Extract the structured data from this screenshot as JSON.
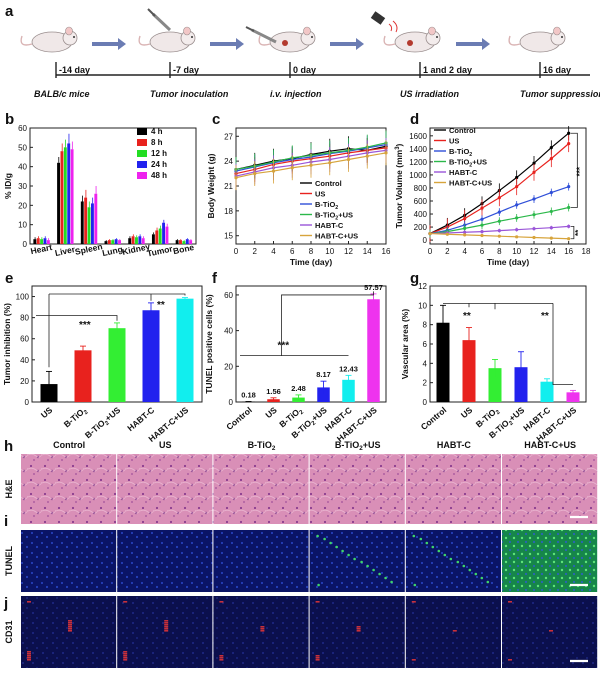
{
  "timeline": {
    "label": "a",
    "days": [
      "-14 day",
      "-7 day",
      "0 day",
      "1 and 2 day",
      "16 day"
    ],
    "steps": [
      "BALB/c mice",
      "Tumor inoculation",
      "i.v. injection",
      "US irradiation",
      "Tumor suppression"
    ]
  },
  "colors": {
    "control": "#000000",
    "us": "#e8221e",
    "btio2": "#2f4fd8",
    "btio2us": "#2bb84a",
    "habtc": "#9a55d8",
    "habtcus": "#d7a43c",
    "bar_btio2us": "#33ee33",
    "bar_habtcus": "#11eeee",
    "bar_magenta": "#ee33ee"
  },
  "charts": [
    {
      "label": "b",
      "type": "bar",
      "ylabel": "% ID/g",
      "categories": [
        "Heart",
        "Liver",
        "Spleen",
        "Lung",
        "Kidney",
        "Tumor",
        "Bone"
      ],
      "ylim": [
        0,
        60
      ],
      "yticks": [
        0,
        10,
        20,
        30,
        40,
        50,
        60
      ],
      "series": [
        {
          "name": "4 h",
          "color": "#000000",
          "values": [
            2.5,
            42,
            22,
            1.5,
            3,
            5,
            2
          ]
        },
        {
          "name": "8 h",
          "color": "#e8221e",
          "values": [
            3,
            48,
            24,
            2,
            4,
            7,
            2
          ]
        },
        {
          "name": "12 h",
          "color": "#22dd22",
          "values": [
            2.5,
            50,
            19,
            2,
            3.5,
            8,
            1.5
          ]
        },
        {
          "name": "24 h",
          "color": "#2222ee",
          "values": [
            3,
            52,
            21,
            2.5,
            4,
            11,
            2.5
          ]
        },
        {
          "name": "48 h",
          "color": "#ee22ee",
          "values": [
            2,
            49,
            26,
            2,
            3,
            9,
            2
          ]
        }
      ],
      "errors": [
        [
          1,
          3,
          3,
          0.5,
          1,
          1,
          0.5
        ],
        [
          1,
          4,
          4,
          0.5,
          1,
          1.5,
          0.5
        ],
        [
          1,
          4,
          3,
          0.5,
          1,
          1.5,
          0.5
        ],
        [
          1,
          5,
          3,
          0.5,
          1,
          1.5,
          0.5
        ],
        [
          1,
          4,
          4,
          0.5,
          1,
          1.5,
          0.5
        ]
      ]
    },
    {
      "label": "c",
      "type": "line",
      "ylabel": "Body Weight (g)",
      "xlabel": "Time (day)",
      "x": [
        0,
        2,
        4,
        6,
        8,
        10,
        12,
        14,
        16
      ],
      "xticks": [
        0,
        2,
        4,
        6,
        8,
        10,
        12,
        14,
        16
      ],
      "xlim": [
        0,
        16
      ],
      "yticks": [
        15,
        18,
        21,
        24,
        27
      ],
      "ylim": [
        14,
        28
      ],
      "series": [
        {
          "name": "Control",
          "color": "#000000",
          "values": [
            23,
            23.5,
            24,
            24.3,
            24.8,
            25.2,
            25.5,
            25.3,
            25.8
          ],
          "err": 1.5
        },
        {
          "name": "US",
          "color": "#e8221e",
          "values": [
            22.5,
            23,
            23.6,
            24,
            24.3,
            24.6,
            25,
            25.3,
            25.6
          ],
          "err": 1.5
        },
        {
          "name": "B-TiO2",
          "color": "#2f4fd8",
          "values": [
            22.8,
            23.3,
            23.8,
            24.2,
            24.5,
            24.9,
            25.2,
            25.6,
            26
          ],
          "err": 1.5
        },
        {
          "name": "B-TiO2+US",
          "color": "#2bb84a",
          "values": [
            23,
            23.4,
            23.9,
            24.4,
            24.7,
            25,
            25.3,
            25.7,
            26.2
          ],
          "err": 1.5
        },
        {
          "name": "HABT-C",
          "color": "#9a55d8",
          "values": [
            22.2,
            22.7,
            23.2,
            23.5,
            23.9,
            24.2,
            24.6,
            25,
            25.3
          ],
          "err": 1.5
        },
        {
          "name": "HABT-C+US",
          "color": "#d7a43c",
          "values": [
            22,
            22.5,
            22.8,
            23.2,
            23.5,
            23.8,
            24.2,
            24.6,
            25
          ],
          "err": 1.5
        }
      ]
    },
    {
      "label": "d",
      "type": "line",
      "ylabel": "Tumor Volume (mm3)",
      "xlabel": "Time (day)",
      "x": [
        0,
        2,
        4,
        6,
        8,
        10,
        12,
        14,
        16
      ],
      "xticks": [
        0,
        2,
        4,
        6,
        8,
        10,
        12,
        14,
        16,
        18
      ],
      "xlim": [
        0,
        18
      ],
      "yticks": [
        0,
        200,
        400,
        600,
        800,
        1000,
        1200,
        1400,
        1600
      ],
      "ylim": [
        -60,
        1720
      ],
      "sig": [
        "***",
        "**"
      ],
      "series": [
        {
          "name": "Control",
          "color": "#000000",
          "values": [
            100,
            230,
            380,
            560,
            760,
            960,
            1180,
            1420,
            1640
          ],
          "err": 110
        },
        {
          "name": "US",
          "color": "#e8221e",
          "values": [
            100,
            200,
            330,
            490,
            650,
            820,
            1040,
            1250,
            1480
          ],
          "err": 130
        },
        {
          "name": "B-TiO2",
          "color": "#2f4fd8",
          "values": [
            100,
            150,
            230,
            320,
            430,
            540,
            630,
            730,
            820
          ],
          "err": 60
        },
        {
          "name": "B-TiO2+US",
          "color": "#2bb84a",
          "values": [
            100,
            130,
            180,
            230,
            290,
            340,
            390,
            440,
            500
          ],
          "err": 60
        },
        {
          "name": "HABT-C",
          "color": "#9a55d8",
          "values": [
            100,
            110,
            120,
            130,
            145,
            160,
            175,
            190,
            210
          ],
          "err": 30
        },
        {
          "name": "HABT-C+US",
          "color": "#d7a43c",
          "values": [
            100,
            90,
            80,
            70,
            60,
            50,
            40,
            30,
            20
          ],
          "err": 15
        }
      ]
    },
    {
      "label": "e",
      "type": "bar",
      "ylabel": "Tumor inhibition (%)",
      "categories": [
        "US",
        "B-TiO2",
        "B-TiO2+US",
        "HABT-C",
        "HABT-C+US"
      ],
      "values": [
        17,
        49,
        70,
        87,
        98
      ],
      "errors": [
        12,
        4,
        5,
        7,
        1
      ],
      "colors": [
        "#000000",
        "#e8221e",
        "#33ee33",
        "#2222ee",
        "#11eeee"
      ],
      "ylim": [
        0,
        110
      ],
      "yticks": [
        0,
        20,
        40,
        60,
        80,
        100
      ],
      "sig": [
        "***",
        "**"
      ]
    },
    {
      "label": "f",
      "type": "bar",
      "ylabel": "TUNEL positive cells (%)",
      "categories": [
        "Control",
        "US",
        "B-TiO2",
        "B-TiO2+US",
        "HABT-C",
        "HABT-C+US"
      ],
      "values": [
        0.18,
        1.56,
        2.48,
        8.17,
        12.43,
        57.57
      ],
      "errors": [
        0.1,
        0.8,
        1.5,
        3.5,
        2.5,
        3
      ],
      "value_labels": [
        "0.18",
        "1.56",
        "2.48",
        "8.17",
        "12.43",
        "57.57"
      ],
      "colors": [
        "#000000",
        "#e8221e",
        "#33ee33",
        "#2222ee",
        "#11eeee",
        "#ee33ee"
      ],
      "ylim": [
        0,
        65
      ],
      "yticks": [
        0,
        20,
        40,
        60
      ],
      "sig": [
        "***"
      ]
    },
    {
      "label": "g",
      "type": "bar",
      "ylabel": "Vascular area (%)",
      "categories": [
        "Control",
        "US",
        "B-TiO2",
        "B-TiO2+US",
        "HABT-C",
        "HABT-C+US"
      ],
      "values": [
        8.2,
        6.4,
        3.5,
        3.6,
        2.1,
        1
      ],
      "errors": [
        1.8,
        1.3,
        0.9,
        1.6,
        0.3,
        0.2
      ],
      "colors": [
        "#000000",
        "#e8221e",
        "#33ee33",
        "#2222ee",
        "#11eeee",
        "#ee33ee"
      ],
      "ylim": [
        0,
        12
      ],
      "yticks": [
        0,
        2,
        4,
        6,
        8,
        10,
        12
      ],
      "sig": [
        "**",
        "**"
      ]
    }
  ],
  "micrographs": {
    "columns": [
      "Control",
      "US",
      "B-TiO2",
      "B-TiO2+US",
      "HABT-C",
      "HABT-C+US"
    ],
    "rows": [
      {
        "label": "h",
        "name": "H&E"
      },
      {
        "label": "i",
        "name": "TUNEL"
      },
      {
        "label": "j",
        "name": "CD31"
      }
    ]
  }
}
